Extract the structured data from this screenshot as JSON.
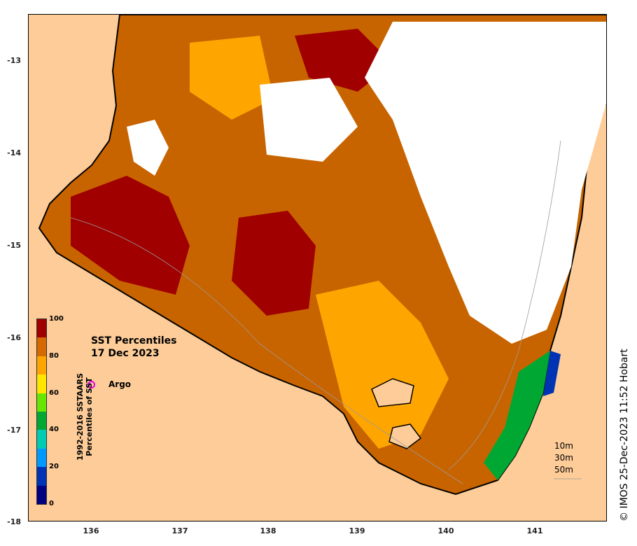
{
  "map": {
    "title_line1": "SST Percentiles",
    "title_line2": "17 Dec 2023",
    "credit": "© IMOS 25-Dec-2023 11:52 Hobart",
    "x_ticks": [
      "136",
      "137",
      "138",
      "139",
      "140",
      "141"
    ],
    "y_ticks": [
      "-13",
      "-14",
      "-15",
      "-16",
      "-17",
      "-18"
    ],
    "legend": {
      "argo_label": "Argo",
      "argo_color": "#e600e6"
    },
    "depth_contours": [
      "10m",
      "30m",
      "50m"
    ],
    "land_color": "#fdcc98",
    "colorbar": {
      "title_line1": "1992-2016 SSTAARS",
      "title_line2": "Percentiles of SST",
      "labels": [
        "100",
        "80",
        "60",
        "40",
        "20",
        "0"
      ],
      "colors": [
        "#000080",
        "#0033b3",
        "#0099ff",
        "#00ccb3",
        "#00a833",
        "#66e600",
        "#ffe600",
        "#ffa500",
        "#d46a00",
        "#a00000"
      ]
    }
  }
}
